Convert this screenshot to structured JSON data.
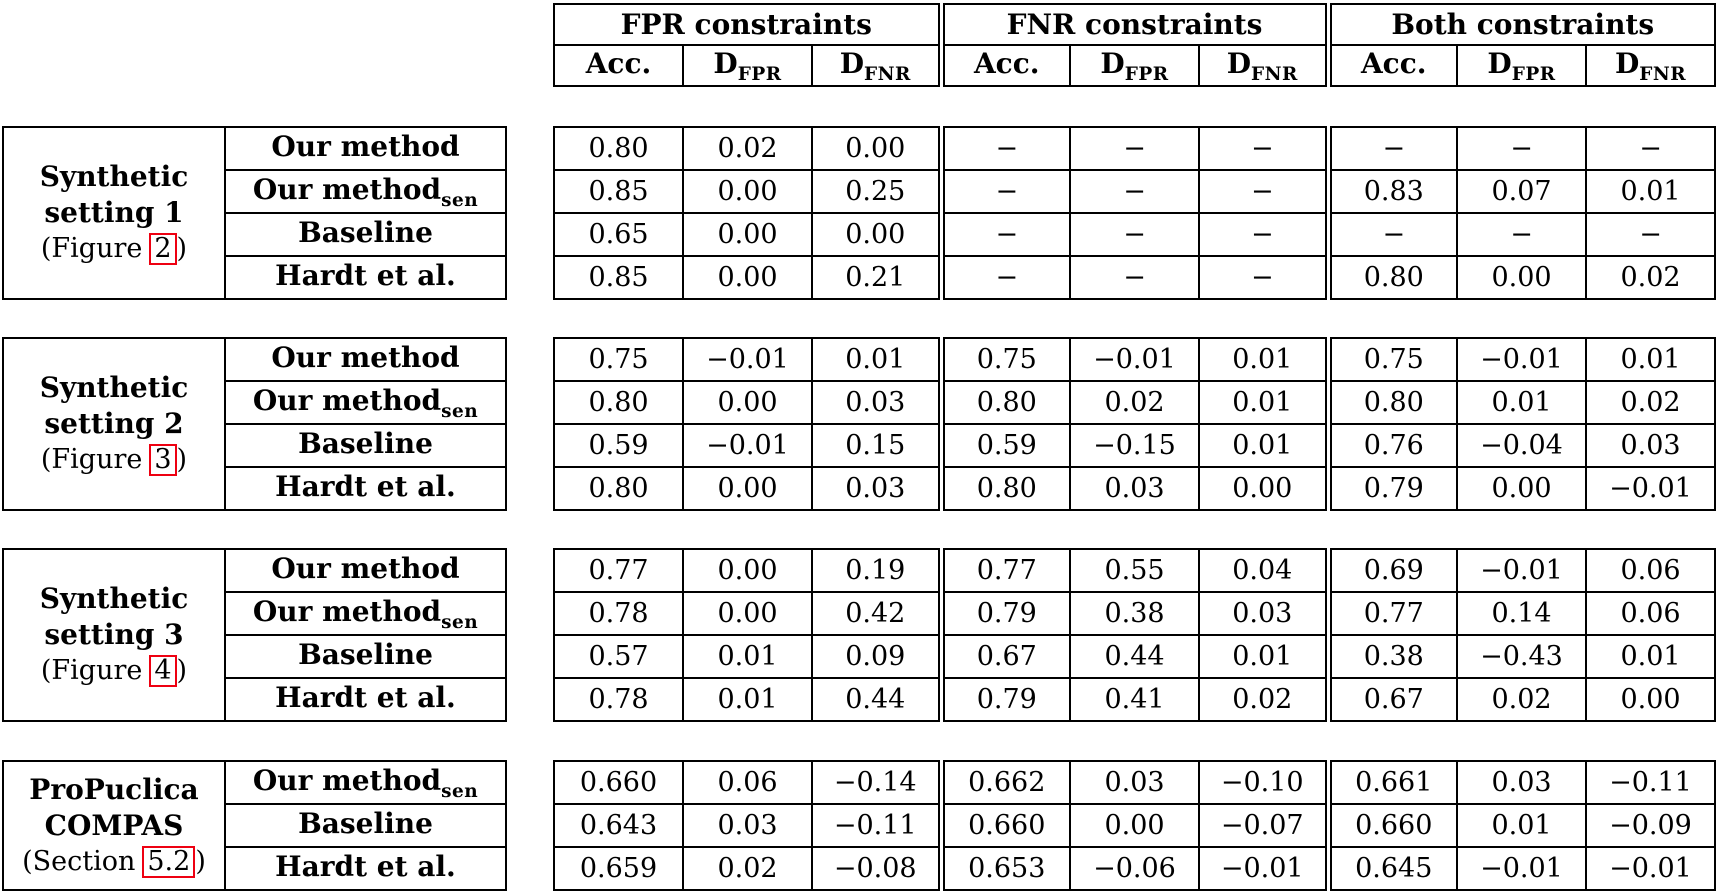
{
  "colors": {
    "background": "#ffffff",
    "text": "#000000",
    "border": "#000000",
    "ref_link_box": "#ee0011"
  },
  "header": {
    "groups": [
      {
        "label": "FPR constraints"
      },
      {
        "label": "FNR constraints"
      },
      {
        "label": "Both constraints"
      }
    ],
    "subcols": [
      {
        "label": "Acc.",
        "sub": ""
      },
      {
        "label": "D",
        "sub": "FPR"
      },
      {
        "label": "D",
        "sub": "FNR"
      }
    ]
  },
  "sections": [
    {
      "title_lines": [
        "Synthetic",
        "setting 1"
      ],
      "ref": {
        "pre": "(Figure",
        "link": "2",
        "post": ")"
      },
      "rows": [
        {
          "method": "Our method",
          "method_sub": "",
          "values": [
            "0.80",
            "0.02",
            "0.00",
            "−",
            "−",
            "−",
            "−",
            "−",
            "−"
          ]
        },
        {
          "method": "Our method",
          "method_sub": "sen",
          "values": [
            "0.85",
            "0.00",
            "0.25",
            "−",
            "−",
            "−",
            "0.83",
            "0.07",
            "0.01"
          ]
        },
        {
          "method": "Baseline",
          "method_sub": "",
          "values": [
            "0.65",
            "0.00",
            "0.00",
            "−",
            "−",
            "−",
            "−",
            "−",
            "−"
          ]
        },
        {
          "method": "Hardt et al.",
          "method_sub": "",
          "values": [
            "0.85",
            "0.00",
            "0.21",
            "−",
            "−",
            "−",
            "0.80",
            "0.00",
            "0.02"
          ]
        }
      ]
    },
    {
      "title_lines": [
        "Synthetic",
        "setting 2"
      ],
      "ref": {
        "pre": "(Figure",
        "link": "3",
        "post": ")"
      },
      "rows": [
        {
          "method": "Our method",
          "method_sub": "",
          "values": [
            "0.75",
            "−0.01",
            "0.01",
            "0.75",
            "−0.01",
            "0.01",
            "0.75",
            "−0.01",
            "0.01"
          ]
        },
        {
          "method": "Our method",
          "method_sub": "sen",
          "values": [
            "0.80",
            "0.00",
            "0.03",
            "0.80",
            "0.02",
            "0.01",
            "0.80",
            "0.01",
            "0.02"
          ]
        },
        {
          "method": "Baseline",
          "method_sub": "",
          "values": [
            "0.59",
            "−0.01",
            "0.15",
            "0.59",
            "−0.15",
            "0.01",
            "0.76",
            "−0.04",
            "0.03"
          ]
        },
        {
          "method": "Hardt et al.",
          "method_sub": "",
          "values": [
            "0.80",
            "0.00",
            "0.03",
            "0.80",
            "0.03",
            "0.00",
            "0.79",
            "0.00",
            "−0.01"
          ]
        }
      ]
    },
    {
      "title_lines": [
        "Synthetic",
        "setting 3"
      ],
      "ref": {
        "pre": "(Figure",
        "link": "4",
        "post": ")"
      },
      "rows": [
        {
          "method": "Our method",
          "method_sub": "",
          "values": [
            "0.77",
            "0.00",
            "0.19",
            "0.77",
            "0.55",
            "0.04",
            "0.69",
            "−0.01",
            "0.06"
          ]
        },
        {
          "method": "Our method",
          "method_sub": "sen",
          "values": [
            "0.78",
            "0.00",
            "0.42",
            "0.79",
            "0.38",
            "0.03",
            "0.77",
            "0.14",
            "0.06"
          ]
        },
        {
          "method": "Baseline",
          "method_sub": "",
          "values": [
            "0.57",
            "0.01",
            "0.09",
            "0.67",
            "0.44",
            "0.01",
            "0.38",
            "−0.43",
            "0.01"
          ]
        },
        {
          "method": "Hardt et al.",
          "method_sub": "",
          "values": [
            "0.78",
            "0.01",
            "0.44",
            "0.79",
            "0.41",
            "0.02",
            "0.67",
            "0.02",
            "0.00"
          ]
        }
      ]
    },
    {
      "title_lines": [
        "ProPuclica",
        "COMPAS"
      ],
      "ref": {
        "pre": "(Section",
        "link": "5.2",
        "post": ")"
      },
      "rows": [
        {
          "method": "Our method",
          "method_sub": "sen",
          "values": [
            "0.660",
            "0.06",
            "−0.14",
            "0.662",
            "0.03",
            "−0.10",
            "0.661",
            "0.03",
            "−0.11"
          ]
        },
        {
          "method": "Baseline",
          "method_sub": "",
          "values": [
            "0.643",
            "0.03",
            "−0.11",
            "0.660",
            "0.00",
            "−0.07",
            "0.660",
            "0.01",
            "−0.09"
          ]
        },
        {
          "method": "Hardt et al.",
          "method_sub": "",
          "values": [
            "0.659",
            "0.02",
            "−0.08",
            "0.653",
            "−0.06",
            "−0.01",
            "0.645",
            "−0.01",
            "−0.01"
          ]
        }
      ]
    }
  ]
}
